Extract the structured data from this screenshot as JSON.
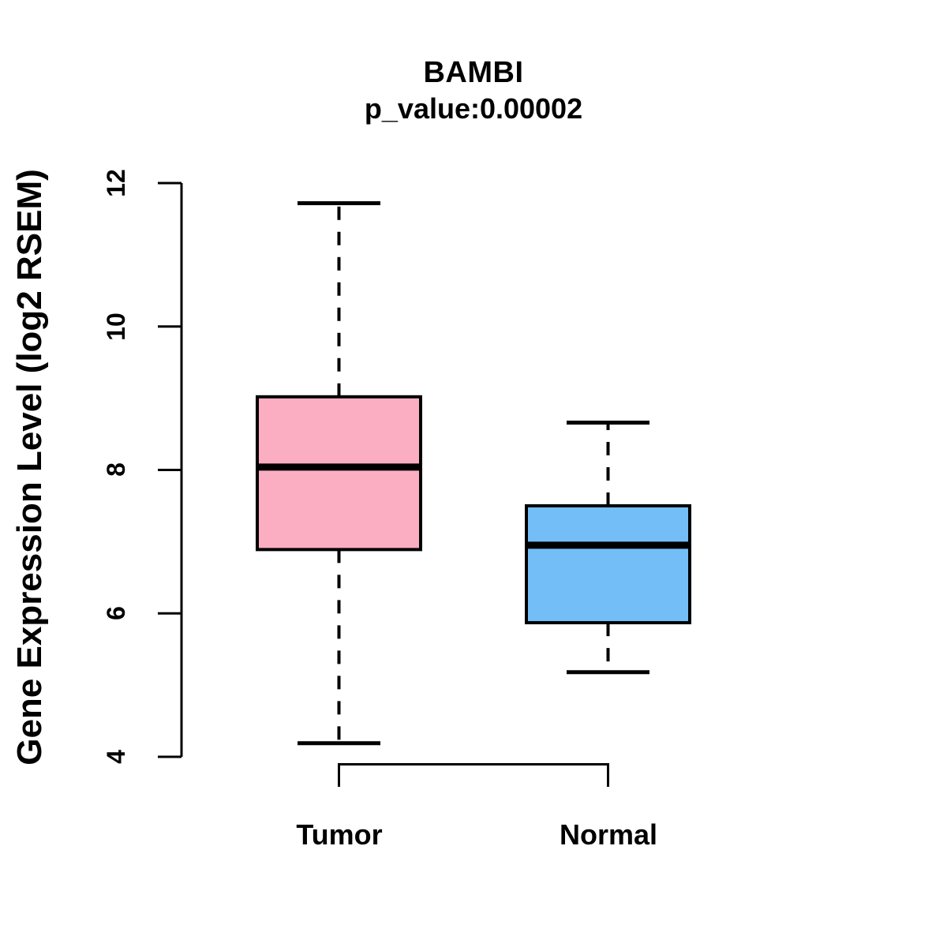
{
  "header": {
    "title": "BAMBI",
    "subtitle": "p_value:0.00002"
  },
  "chart_data": {
    "type": "boxplot",
    "title": "BAMBI",
    "subtitle": "p_value:0.00002",
    "xlabel": "",
    "ylabel": "Gene Expression Level (log2 RSEM)",
    "ylim": [
      4,
      12
    ],
    "grid": false,
    "yaxis": {
      "ticks": [
        4,
        6,
        8,
        10,
        12
      ],
      "tick_labels": [
        "4",
        "6",
        "8",
        "10",
        "12"
      ]
    },
    "categories": [
      "Tumor",
      "Normal"
    ],
    "series": [
      {
        "name": "Tumor",
        "fill_color": "#FBAEC2",
        "whisker_low": 4.19,
        "q1": 6.89,
        "median": 8.04,
        "q3": 9.02,
        "whisker_high": 11.72
      },
      {
        "name": "Normal",
        "fill_color": "#73BEF7",
        "whisker_low": 5.18,
        "q1": 5.87,
        "median": 6.95,
        "q3": 7.5,
        "whisker_high": 8.66
      }
    ],
    "colors": {
      "tumor_fill": "#FBAEC2",
      "normal_fill": "#73BEF7",
      "line": "#000000",
      "background": "#ffffff"
    }
  }
}
